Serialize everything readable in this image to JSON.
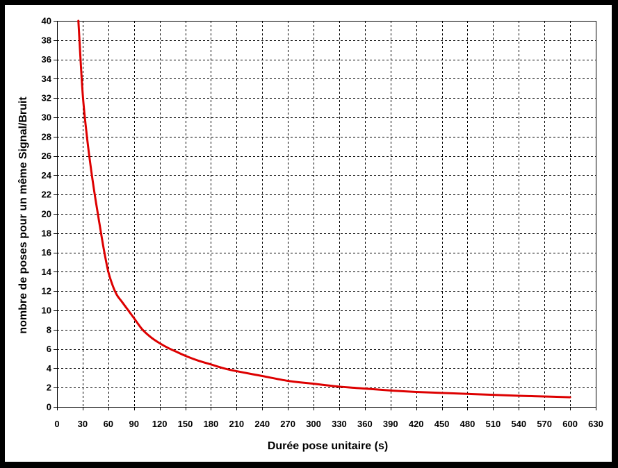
{
  "chart_data": {
    "type": "line",
    "title": "",
    "xlabel": "Durée pose unitaire (s)",
    "ylabel": "nombre de poses pour un même Signal/Bruit",
    "xlim": [
      0,
      630
    ],
    "ylim": [
      0,
      40
    ],
    "x_ticks": [
      0,
      30,
      60,
      90,
      120,
      150,
      180,
      210,
      240,
      270,
      300,
      330,
      360,
      390,
      420,
      450,
      480,
      510,
      540,
      570,
      600,
      630
    ],
    "y_ticks": [
      0,
      2,
      4,
      6,
      8,
      10,
      12,
      14,
      16,
      18,
      20,
      22,
      24,
      26,
      28,
      30,
      32,
      34,
      36,
      38,
      40
    ],
    "grid": true,
    "legend": "none",
    "series": [
      {
        "color": "#dd0000",
        "x": [
          25,
          30,
          35,
          40,
          45,
          50,
          55,
          60,
          65,
          70,
          75,
          80,
          90,
          100,
          110,
          120,
          130,
          140,
          150,
          165,
          180,
          195,
          210,
          240,
          270,
          300,
          330,
          360,
          390,
          420,
          450,
          480,
          510,
          540,
          570,
          600
        ],
        "y": [
          40,
          32.5,
          28,
          24.5,
          21.5,
          18.8,
          16.2,
          14,
          12.6,
          11.6,
          11,
          10.4,
          9.2,
          8,
          7.2,
          6.6,
          6.1,
          5.7,
          5.3,
          4.8,
          4.4,
          4,
          3.7,
          3.2,
          2.7,
          2.4,
          2.1,
          1.9,
          1.7,
          1.55,
          1.45,
          1.35,
          1.25,
          1.15,
          1.08,
          1
        ]
      }
    ]
  }
}
